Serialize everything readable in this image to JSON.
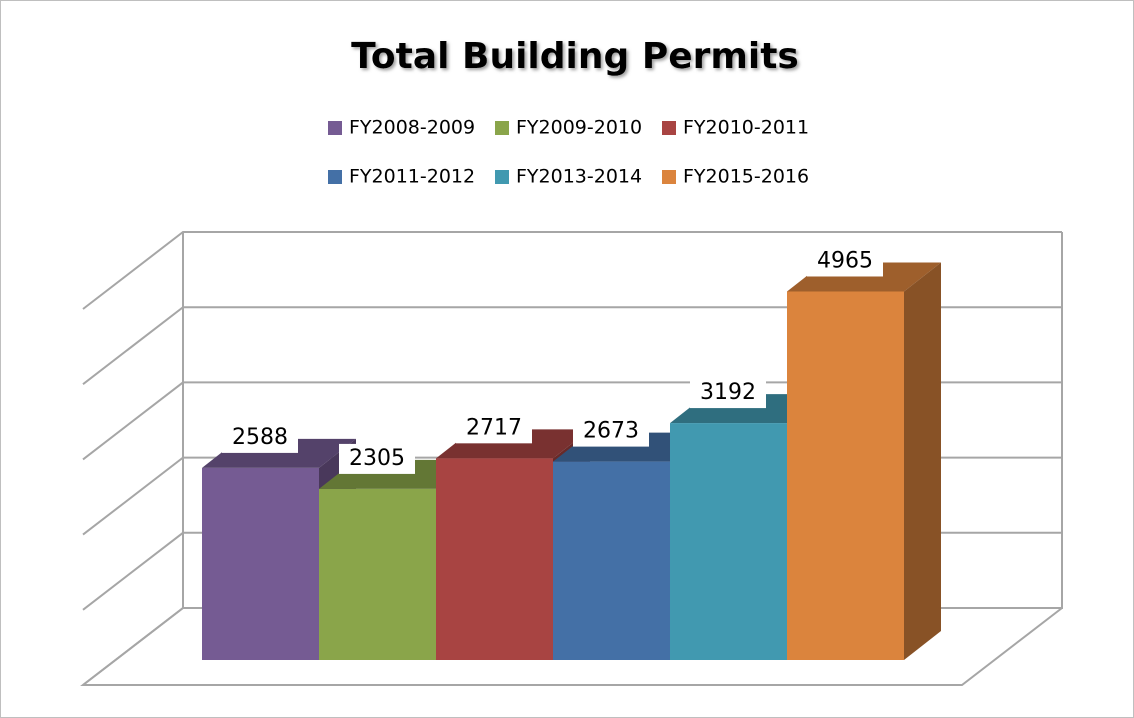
{
  "chart_data": {
    "type": "bar",
    "title": "Total Building Permits",
    "series": [
      {
        "name": "FY2008-2009",
        "color": "#755b93",
        "values": [
          2588
        ]
      },
      {
        "name": "FY2009-2010",
        "color": "#8aa54a",
        "values": [
          2305
        ]
      },
      {
        "name": "FY2010-2011",
        "color": "#a84442",
        "values": [
          2717
        ]
      },
      {
        "name": "FY2011-2012",
        "color": "#4470a6",
        "values": [
          2673
        ]
      },
      {
        "name": "FY2013-2014",
        "color": "#4199b0",
        "values": [
          3192
        ]
      },
      {
        "name": "FY2015-2016",
        "color": "#db843d",
        "values": [
          4965
        ]
      }
    ],
    "ylim": [
      0,
      5000
    ],
    "yticks": [
      0,
      1000,
      2000,
      3000,
      4000,
      5000
    ],
    "grid": true
  }
}
